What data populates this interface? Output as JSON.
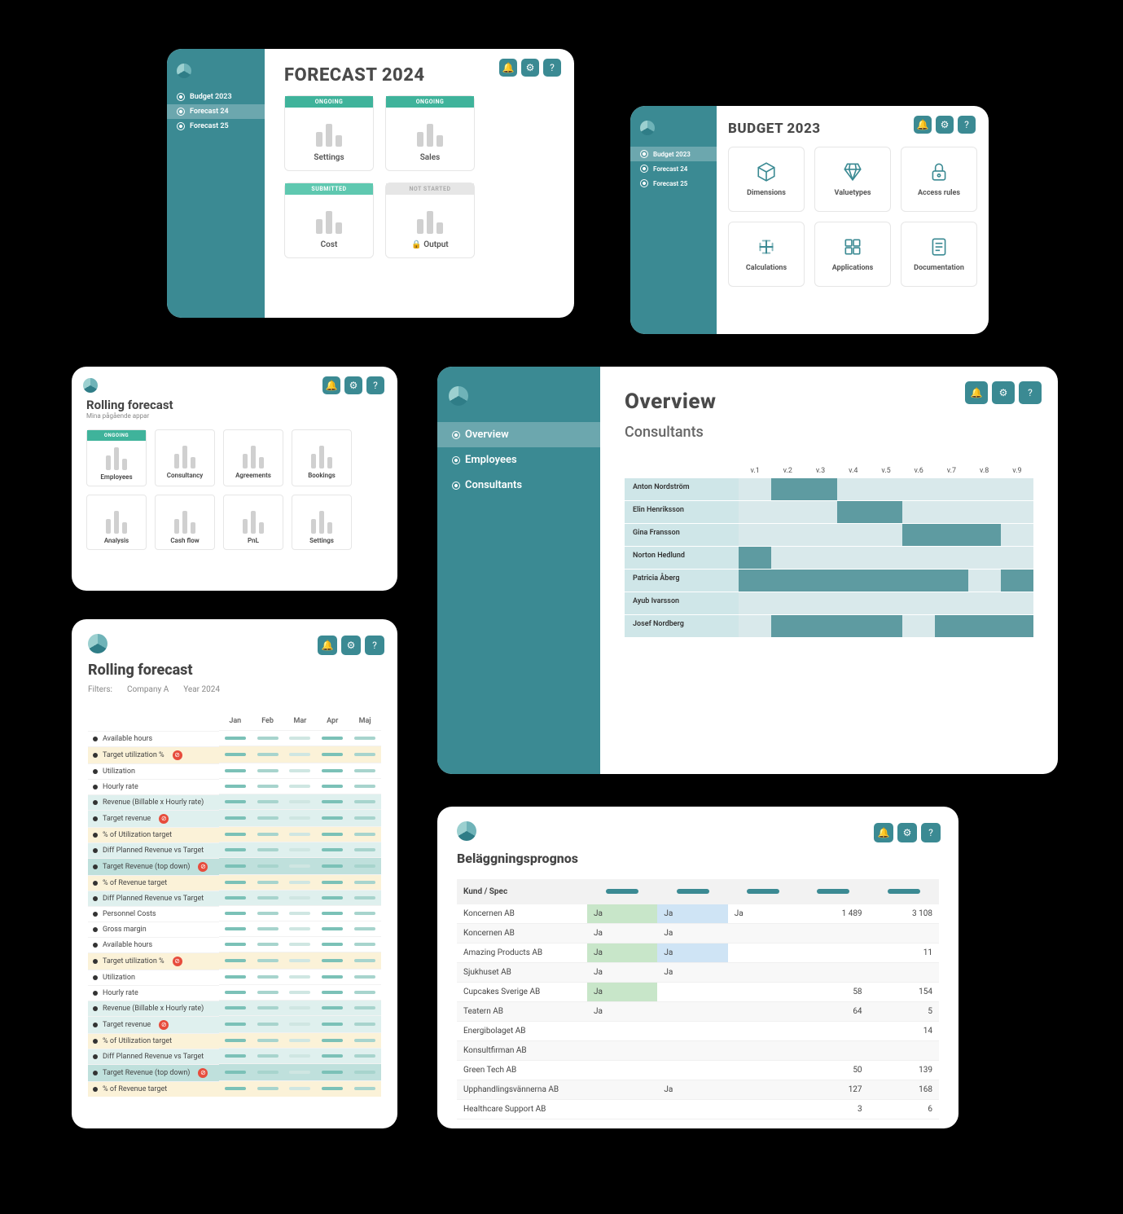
{
  "colors": {
    "teal": "#3b8a93",
    "teal_light": "#5e9ba1",
    "teal_bg": "#d9e9eb",
    "teal_row": "#cfe6e8",
    "ongoing": "#3fb39b",
    "submitted": "#5fc8b0",
    "notstarted_bg": "#e6e6e6",
    "yellow_hl": "#fbf2d8",
    "teal_hl": "#dff0ee",
    "teal_hl_dk": "#bfe0dc",
    "green_cell": "#c8e6c9",
    "blue_cell": "#cfe4f5"
  },
  "card1": {
    "title": "FORECAST 2024",
    "sidebar": [
      {
        "label": "Budget 2023",
        "active": false
      },
      {
        "label": "Forecast 24",
        "active": true
      },
      {
        "label": "Forecast 25",
        "active": false
      }
    ],
    "tiles": [
      {
        "badge": "ONGOING",
        "badge_cls": "badge-ongoing",
        "label": "Settings"
      },
      {
        "badge": "ONGOING",
        "badge_cls": "badge-ongoing",
        "label": "Sales"
      },
      {
        "badge": "SUBMITTED",
        "badge_cls": "badge-submitted",
        "label": "Cost"
      },
      {
        "badge": "NOT STARTED",
        "badge_cls": "badge-notstarted",
        "label": "Output",
        "locked": true
      }
    ]
  },
  "card2": {
    "title": "BUDGET 2023",
    "sidebar": [
      {
        "label": "Budget 2023",
        "active": true
      },
      {
        "label": "Forecast 24",
        "active": false
      },
      {
        "label": "Forecast 25",
        "active": false
      }
    ],
    "cards": [
      {
        "icon": "cube",
        "label": "Dimensions"
      },
      {
        "icon": "diamond",
        "label": "Valuetypes"
      },
      {
        "icon": "lock",
        "label": "Access rules"
      },
      {
        "icon": "plus",
        "label": "Calculations"
      },
      {
        "icon": "apps",
        "label": "Applications"
      },
      {
        "icon": "doc",
        "label": "Documentation"
      }
    ]
  },
  "card3": {
    "title": "Rolling forecast",
    "subtitle": "Mina pågående appar",
    "tiles": [
      {
        "label": "Employees",
        "badge": "ONGOING"
      },
      {
        "label": "Consultancy"
      },
      {
        "label": "Agreements"
      },
      {
        "label": "Bookings"
      },
      {
        "label": "Analysis"
      },
      {
        "label": "Cash flow"
      },
      {
        "label": "PnL"
      },
      {
        "label": "Settings"
      }
    ]
  },
  "card4": {
    "title": "Overview",
    "subtitle": "Consultants",
    "sidebar": [
      {
        "label": "Overview",
        "active": true
      },
      {
        "label": "Employees",
        "active": false
      },
      {
        "label": "Consultants",
        "active": false
      }
    ],
    "weeks": [
      "v.1",
      "v.2",
      "v.3",
      "v.4",
      "v.5",
      "v.6",
      "v.7",
      "v.8",
      "v.9"
    ],
    "rows": [
      {
        "name": "Anton Nordström",
        "cells": [
          0,
          1,
          1,
          0,
          0,
          0,
          0,
          0,
          0
        ]
      },
      {
        "name": "Elin Henriksson",
        "cells": [
          0,
          0,
          0,
          1,
          1,
          0,
          0,
          0,
          0
        ]
      },
      {
        "name": "Gina Fransson",
        "cells": [
          0,
          0,
          0,
          0,
          0,
          1,
          1,
          1,
          0
        ]
      },
      {
        "name": "Norton Hedlund",
        "cells": [
          1,
          0,
          0,
          0,
          0,
          0,
          0,
          0,
          0
        ]
      },
      {
        "name": "Patricia Åberg",
        "cells": [
          1,
          1,
          1,
          1,
          1,
          1,
          1,
          0,
          1
        ]
      },
      {
        "name": "Ayub Ivarsson",
        "cells": [
          0,
          0,
          0,
          0,
          0,
          0,
          0,
          0,
          0
        ]
      },
      {
        "name": "Josef Nordberg",
        "cells": [
          0,
          1,
          1,
          1,
          1,
          0,
          1,
          1,
          1
        ]
      }
    ]
  },
  "card5": {
    "title": "Rolling forecast",
    "filters_label": "Filters:",
    "filters": [
      "Company A",
      "Year 2024"
    ],
    "months": [
      "Jan",
      "Feb",
      "Mar",
      "Apr",
      "Maj"
    ],
    "rows": [
      {
        "label": "Available hours",
        "hl": ""
      },
      {
        "label": "Target utilization %",
        "hl": "hl-yellow",
        "err": true
      },
      {
        "label": "Utilization",
        "hl": ""
      },
      {
        "label": "Hourly rate",
        "hl": ""
      },
      {
        "label": "Revenue (Billable x Hourly rate)",
        "hl": "hl-teal"
      },
      {
        "label": "Target revenue",
        "hl": "hl-teal",
        "err": true
      },
      {
        "label": "% of Utilization target",
        "hl": "hl-yellow"
      },
      {
        "label": "Diff Planned Revenue vs Target",
        "hl": "hl-teal"
      },
      {
        "label": "Target Revenue (top down)",
        "hl": "hl-dk",
        "err": true
      },
      {
        "label": "% of Revenue target",
        "hl": "hl-yellow"
      },
      {
        "label": "Diff Planned Revenue vs Target",
        "hl": "hl-teal"
      },
      {
        "label": "Personnel Costs",
        "hl": ""
      },
      {
        "label": "Gross margin",
        "hl": ""
      },
      {
        "label": "Available hours",
        "hl": ""
      },
      {
        "label": "Target utilization %",
        "hl": "hl-yellow",
        "err": true
      },
      {
        "label": "Utilization",
        "hl": ""
      },
      {
        "label": "Hourly rate",
        "hl": ""
      },
      {
        "label": "Revenue (Billable x Hourly rate)",
        "hl": "hl-teal"
      },
      {
        "label": "Target revenue",
        "hl": "hl-teal",
        "err": true
      },
      {
        "label": "% of Utilization target",
        "hl": "hl-yellow"
      },
      {
        "label": "Diff Planned Revenue vs Target",
        "hl": "hl-teal"
      },
      {
        "label": "Target Revenue (top down)",
        "hl": "hl-dk",
        "err": true
      },
      {
        "label": "% of Revenue target",
        "hl": "hl-yellow"
      }
    ]
  },
  "card6": {
    "title": "Beläggningsprognos",
    "header": "Kund / Spec",
    "rows": [
      {
        "name": "Koncernen AB",
        "c1": "Ja",
        "c1s": "g",
        "c2": "Ja",
        "c2s": "b",
        "c3": "Ja",
        "v1": "1 489",
        "v2": "3 108",
        "alt": false
      },
      {
        "name": "Koncernen AB",
        "c1": "Ja",
        "c1s": "g",
        "c2": "Ja",
        "c2s": "b",
        "alt": true
      },
      {
        "name": "Amazing Products AB",
        "c1": "Ja",
        "c1s": "g",
        "c2": "Ja",
        "c2s": "b",
        "v2": "11",
        "alt": false
      },
      {
        "name": "Sjukhuset AB",
        "c1": "Ja",
        "c1s": "g",
        "c2": "Ja",
        "c2s": "b",
        "alt": true
      },
      {
        "name": "Cupcakes Sverige AB",
        "c1": "Ja",
        "c1s": "g",
        "v1": "58",
        "v2": "154",
        "alt": false
      },
      {
        "name": "Teatern AB",
        "c1": "Ja",
        "v1": "64",
        "v2": "5",
        "alt": true
      },
      {
        "name": "Energibolaget AB",
        "v2": "14",
        "alt": false
      },
      {
        "name": "Konsultfirman AB",
        "alt": true
      },
      {
        "name": "Green Tech AB",
        "v1": "50",
        "v2": "139",
        "alt": false
      },
      {
        "name": "Upphandlingsvännerna AB",
        "c2": "Ja",
        "c2s": "b",
        "v1": "127",
        "v2": "168",
        "alt": true
      },
      {
        "name": "Healthcare Support AB",
        "v1": "3",
        "v2": "6",
        "alt": false
      }
    ]
  }
}
